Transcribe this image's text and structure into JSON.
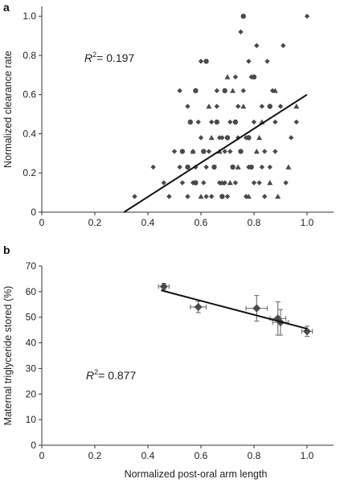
{
  "chart_data": [
    {
      "type": "scatter",
      "panel": "a",
      "ylabel": "Normalized clearance rate",
      "xlabel": "",
      "xlim": [
        0,
        1.1
      ],
      "ylim": [
        0,
        1.05
      ],
      "xticks": [
        "0",
        "0.2",
        "0.4",
        "0.6",
        "0.8",
        "1.0"
      ],
      "yticks": [
        "0",
        "0.2",
        "0.4",
        "0.6",
        "0.8",
        "1.0"
      ],
      "annotation": {
        "prefix": "R",
        "sup": "2",
        "value": "= 0.197"
      },
      "fit_line": {
        "x": [
          0.31,
          1.0
        ],
        "y": [
          0.0,
          0.6
        ]
      },
      "series": [
        {
          "marker": "diamond",
          "points": [
            [
              0.35,
              0.08
            ],
            [
              0.42,
              0.23
            ],
            [
              0.46,
              0.15
            ],
            [
              0.48,
              0.08
            ],
            [
              0.5,
              0.31
            ],
            [
              0.52,
              0.23
            ],
            [
              0.53,
              0.15
            ],
            [
              0.55,
              0.08
            ],
            [
              0.57,
              0.31
            ],
            [
              0.58,
              0.23
            ],
            [
              0.6,
              0.38
            ],
            [
              0.61,
              0.15
            ],
            [
              0.62,
              0.08
            ],
            [
              0.63,
              0.31
            ],
            [
              0.64,
              0.46
            ],
            [
              0.65,
              0.23
            ],
            [
              0.66,
              0.54
            ],
            [
              0.67,
              0.15
            ],
            [
              0.68,
              0.38
            ],
            [
              0.69,
              0.31
            ],
            [
              0.7,
              0.08
            ],
            [
              0.71,
              0.46
            ],
            [
              0.72,
              0.23
            ],
            [
              0.73,
              0.15
            ],
            [
              0.74,
              0.54
            ],
            [
              0.75,
              0.31
            ],
            [
              0.76,
              0.62
            ],
            [
              0.77,
              0.38
            ],
            [
              0.78,
              0.23
            ],
            [
              0.79,
              0.69
            ],
            [
              0.8,
              0.46
            ],
            [
              0.81,
              0.85
            ],
            [
              0.82,
              0.15
            ],
            [
              0.83,
              0.54
            ],
            [
              0.84,
              0.31
            ],
            [
              0.85,
              0.77
            ],
            [
              0.86,
              0.23
            ],
            [
              0.87,
              0.62
            ],
            [
              0.88,
              0.46
            ],
            [
              0.9,
              0.54
            ],
            [
              0.91,
              0.85
            ],
            [
              0.92,
              0.15
            ],
            [
              0.94,
              0.38
            ],
            [
              0.96,
              0.46
            ],
            [
              1.0,
              1.0
            ],
            [
              0.75,
              0.92
            ],
            [
              0.78,
              0.77
            ],
            [
              0.59,
              0.46
            ],
            [
              0.66,
              0.62
            ],
            [
              0.55,
              0.54
            ],
            [
              0.73,
              0.69
            ],
            [
              0.88,
              0.31
            ],
            [
              0.62,
              0.23
            ],
            [
              0.69,
              0.15
            ],
            [
              0.77,
              0.08
            ],
            [
              0.84,
              0.08
            ],
            [
              0.57,
              0.15
            ],
            [
              0.64,
              0.08
            ],
            [
              0.71,
              0.31
            ],
            [
              0.8,
              0.15
            ],
            [
              0.83,
              0.23
            ],
            [
              0.67,
              0.38
            ],
            [
              0.74,
              0.38
            ],
            [
              0.52,
              0.62
            ],
            [
              0.6,
              0.77
            ]
          ]
        },
        {
          "marker": "circle",
          "points": [
            [
              0.76,
              1.0
            ],
            [
              0.62,
              0.77
            ],
            [
              0.58,
              0.62
            ],
            [
              0.69,
              0.62
            ],
            [
              0.8,
              0.69
            ],
            [
              0.56,
              0.46
            ],
            [
              0.66,
              0.46
            ],
            [
              0.73,
              0.46
            ],
            [
              0.53,
              0.31
            ],
            [
              0.61,
              0.31
            ],
            [
              0.7,
              0.38
            ],
            [
              0.78,
              0.38
            ],
            [
              0.65,
              0.23
            ],
            [
              0.72,
              0.23
            ],
            [
              0.58,
              0.15
            ],
            [
              0.79,
              0.23
            ],
            [
              0.86,
              0.54
            ],
            [
              0.68,
              0.08
            ],
            [
              0.55,
              0.23
            ],
            [
              0.75,
              0.31
            ]
          ]
        },
        {
          "marker": "triangle",
          "points": [
            [
              0.7,
              0.69
            ],
            [
              0.72,
              0.62
            ],
            [
              0.76,
              0.54
            ],
            [
              0.83,
              0.46
            ],
            [
              0.88,
              0.62
            ],
            [
              0.63,
              0.54
            ],
            [
              0.67,
              0.31
            ],
            [
              0.74,
              0.23
            ],
            [
              0.81,
              0.31
            ],
            [
              0.86,
              0.15
            ],
            [
              0.89,
              0.08
            ],
            [
              0.68,
              0.15
            ],
            [
              0.6,
              0.08
            ],
            [
              0.78,
              0.08
            ],
            [
              0.93,
              0.23
            ],
            [
              0.64,
              0.38
            ],
            [
              0.82,
              0.38
            ],
            [
              0.71,
              0.15
            ],
            [
              0.57,
              0.31
            ],
            [
              0.96,
              0.54
            ]
          ]
        }
      ]
    },
    {
      "type": "scatter",
      "panel": "b",
      "ylabel": "Maternal triglyceride stored (%)",
      "xlabel": "Normalized post-oral arm length",
      "xlim": [
        0,
        1.1
      ],
      "ylim": [
        0,
        70
      ],
      "xticks": [
        "0",
        "0.2",
        "0.4",
        "0.6",
        "0.8",
        "1.0"
      ],
      "yticks": [
        "0",
        "10",
        "20",
        "30",
        "40",
        "50",
        "60",
        "70"
      ],
      "annotation": {
        "prefix": "R",
        "sup": "2",
        "value": "= 0.877"
      },
      "fit_line": {
        "x": [
          0.45,
          1.0
        ],
        "y": [
          60.5,
          45.5
        ]
      },
      "series": [
        {
          "marker": "diamond",
          "points": [
            {
              "x": 0.46,
              "y": 62,
              "xerr": 0.02,
              "yerr": 1.2
            },
            {
              "x": 0.59,
              "y": 54,
              "xerr": 0.03,
              "yerr": 2.2
            },
            {
              "x": 0.81,
              "y": 53.5,
              "xerr": 0.04,
              "yerr": 5
            },
            {
              "x": 0.89,
              "y": 49.5,
              "xerr": 0.03,
              "yerr": 6.5
            },
            {
              "x": 0.9,
              "y": 48,
              "xerr": 0.03,
              "yerr": 5
            },
            {
              "x": 1.0,
              "y": 44.5,
              "xerr": 0.02,
              "yerr": 2
            }
          ]
        }
      ]
    }
  ]
}
